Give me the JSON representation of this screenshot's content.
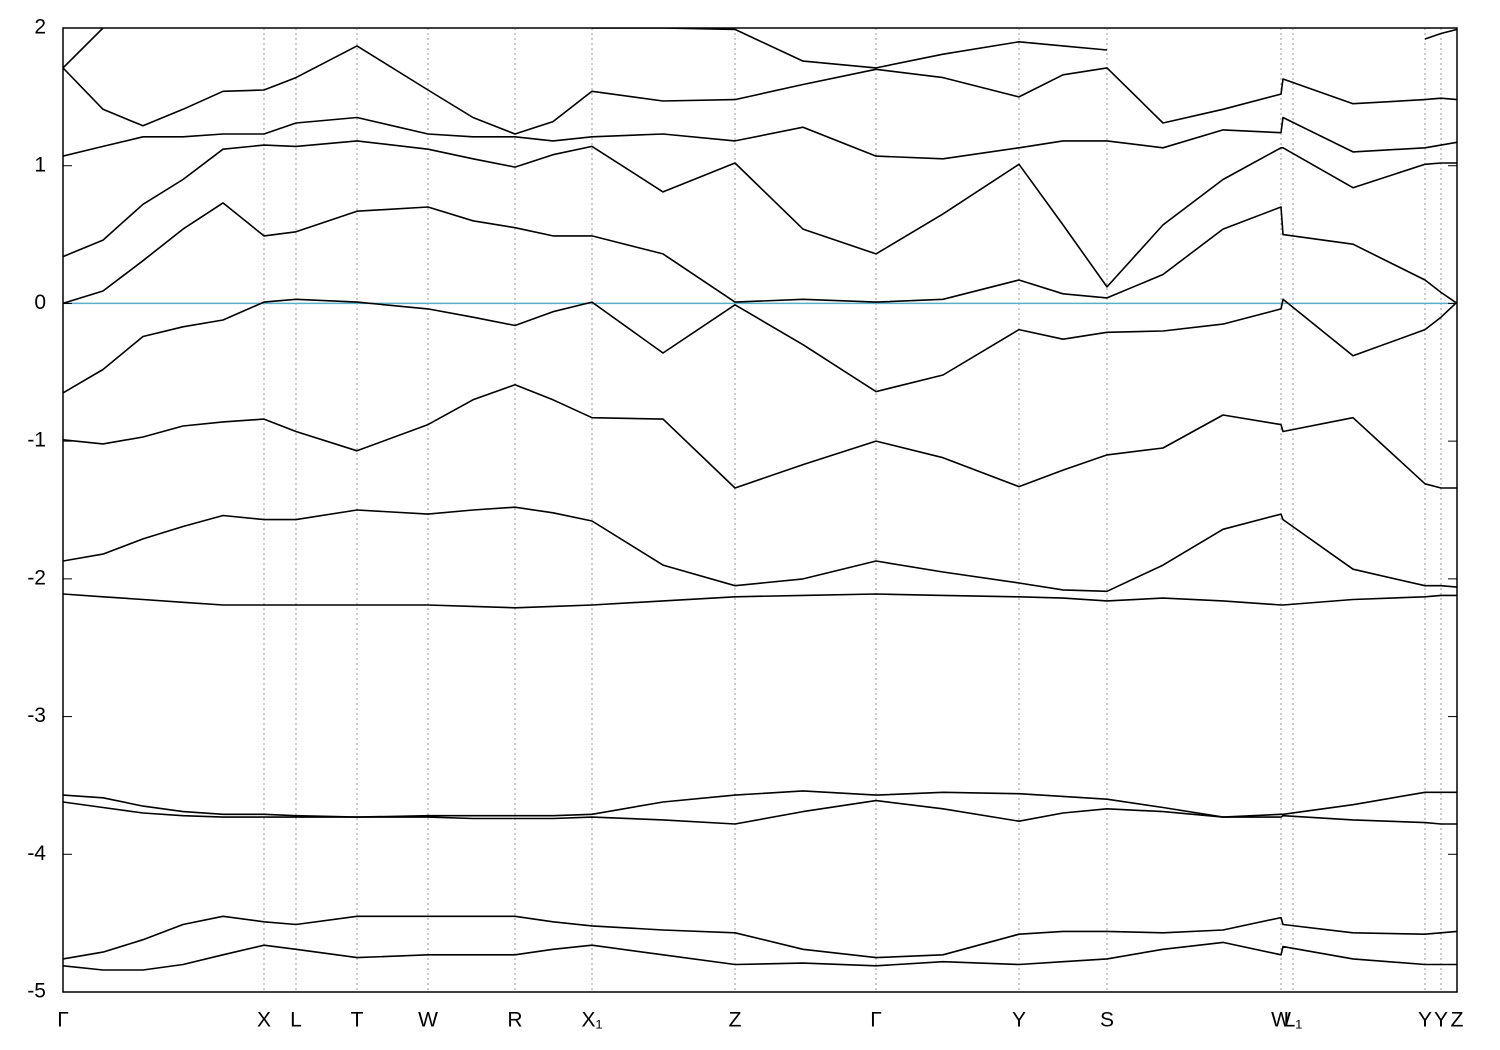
{
  "chart_data": {
    "type": "line",
    "x": [
      0,
      40,
      80,
      120,
      160,
      201,
      233,
      294,
      365,
      410,
      452,
      490,
      529,
      600,
      672,
      740,
      813,
      880,
      956,
      1000,
      1044,
      1100,
      1160,
      1218,
      1220,
      1290,
      1362,
      1378,
      1394
    ],
    "xlim": [
      0,
      1394
    ],
    "xticks": [
      {
        "value": 0,
        "label": "Γ"
      },
      {
        "value": 201,
        "label": "X"
      },
      {
        "value": 233,
        "label": "L"
      },
      {
        "value": 294,
        "label": "T"
      },
      {
        "value": 365,
        "label": "W"
      },
      {
        "value": 452,
        "label": "R"
      },
      {
        "value": 529,
        "label": "X₁"
      },
      {
        "value": 672,
        "label": "Z"
      },
      {
        "value": 813,
        "label": "Γ"
      },
      {
        "value": 956,
        "label": "Y"
      },
      {
        "value": 1044,
        "label": "S"
      },
      {
        "value": 1218,
        "label": "W"
      },
      {
        "value": 1230,
        "label": "L₁"
      },
      {
        "value": 1362,
        "label": "Y"
      },
      {
        "value": 1378,
        "label": "Y"
      },
      {
        "value": 1394,
        "label": "Z"
      }
    ],
    "ylim": [
      -5,
      2
    ],
    "yticks": [
      -5,
      -4,
      -3,
      -2,
      -1,
      0,
      1,
      2
    ],
    "grid": true,
    "color": "#000000",
    "hline": 0,
    "hline_color": "#5aaec8",
    "series": [
      {
        "values": [
          -4.81,
          -4.84,
          -4.84,
          -4.8,
          -4.73,
          -4.66,
          -4.69,
          -4.75,
          -4.73,
          -4.73,
          -4.73,
          -4.69,
          -4.66,
          -4.73,
          -4.8,
          -4.79,
          -4.81,
          -4.78,
          -4.8,
          -4.78,
          -4.76,
          -4.69,
          -4.64,
          -4.73,
          -4.67,
          -4.76,
          -4.8,
          -4.8,
          -4.8
        ]
      },
      {
        "values": [
          -4.76,
          -4.71,
          -4.62,
          -4.51,
          -4.45,
          -4.49,
          -4.51,
          -4.45,
          -4.45,
          -4.45,
          -4.45,
          -4.49,
          -4.52,
          -4.55,
          -4.57,
          -4.69,
          -4.75,
          -4.73,
          -4.58,
          -4.56,
          -4.56,
          -4.57,
          -4.55,
          -4.46,
          -4.51,
          -4.57,
          -4.58,
          -4.57,
          -4.56
        ]
      },
      {
        "values": [
          -3.62,
          -3.66,
          -3.7,
          -3.72,
          -3.73,
          -3.73,
          -3.73,
          -3.73,
          -3.73,
          -3.74,
          -3.74,
          -3.74,
          -3.73,
          -3.75,
          -3.78,
          -3.69,
          -3.61,
          -3.67,
          -3.76,
          -3.7,
          -3.67,
          -3.69,
          -3.73,
          -3.73,
          -3.72,
          -3.75,
          -3.77,
          -3.78,
          -3.78
        ]
      },
      {
        "values": [
          -3.57,
          -3.59,
          -3.65,
          -3.69,
          -3.71,
          -3.71,
          -3.72,
          -3.73,
          -3.72,
          -3.72,
          -3.72,
          -3.72,
          -3.71,
          -3.62,
          -3.57,
          -3.54,
          -3.57,
          -3.55,
          -3.56,
          -3.58,
          -3.6,
          -3.66,
          -3.73,
          -3.71,
          -3.71,
          -3.64,
          -3.55,
          -3.55,
          -3.55
        ]
      },
      {
        "values": [
          -2.11,
          -2.13,
          -2.15,
          -2.17,
          -2.19,
          -2.19,
          -2.19,
          -2.19,
          -2.19,
          -2.2,
          -2.21,
          -2.2,
          -2.19,
          -2.16,
          -2.13,
          -2.12,
          -2.11,
          -2.12,
          -2.13,
          -2.14,
          -2.16,
          -2.14,
          -2.16,
          -2.19,
          -2.19,
          -2.15,
          -2.13,
          -2.12,
          -2.12
        ]
      },
      {
        "values": [
          -1.87,
          -1.82,
          -1.71,
          -1.62,
          -1.54,
          -1.57,
          -1.57,
          -1.5,
          -1.53,
          -1.5,
          -1.48,
          -1.52,
          -1.58,
          -1.9,
          -2.05,
          -2.0,
          -1.87,
          -1.95,
          -2.03,
          -2.08,
          -2.09,
          -1.9,
          -1.64,
          -1.53,
          -1.57,
          -1.93,
          -2.05,
          -2.05,
          -2.06
        ]
      },
      {
        "values": [
          -0.99,
          -1.02,
          -0.97,
          -0.89,
          -0.86,
          -0.84,
          -0.93,
          -1.07,
          -0.88,
          -0.7,
          -0.59,
          -0.7,
          -0.83,
          -0.84,
          -1.34,
          -1.17,
          -1.0,
          -1.12,
          -1.33,
          -1.21,
          -1.1,
          -1.05,
          -0.81,
          -0.88,
          -0.93,
          -0.83,
          -1.31,
          -1.34,
          -1.34
        ]
      },
      {
        "values": [
          -0.65,
          -0.48,
          -0.24,
          -0.17,
          -0.12,
          0.01,
          0.03,
          0.01,
          -0.04,
          -0.1,
          -0.16,
          -0.06,
          0.01,
          -0.36,
          -0.01,
          -0.3,
          -0.64,
          -0.52,
          -0.19,
          -0.26,
          -0.21,
          -0.2,
          -0.15,
          -0.04,
          0.03,
          -0.38,
          -0.19,
          -0.1,
          0.01
        ]
      },
      {
        "values": [
          0.0,
          0.09,
          0.31,
          0.54,
          0.73,
          0.49,
          0.52,
          0.67,
          0.7,
          0.6,
          0.55,
          0.49,
          0.49,
          0.36,
          0.01,
          0.03,
          0.01,
          0.03,
          0.17,
          0.07,
          0.04,
          0.21,
          0.54,
          0.7,
          0.5,
          0.43,
          0.17,
          0.08,
          0.0
        ]
      },
      {
        "values": [
          0.34,
          0.46,
          0.72,
          0.9,
          1.12,
          1.15,
          1.14,
          1.18,
          1.12,
          1.05,
          0.99,
          1.08,
          1.14,
          0.81,
          1.02,
          0.54,
          0.36,
          0.65,
          1.01,
          0.57,
          0.12,
          0.57,
          0.9,
          1.13,
          1.13,
          0.84,
          1.01,
          1.02,
          1.02
        ]
      },
      {
        "values": [
          1.07,
          1.14,
          1.21,
          1.21,
          1.23,
          1.23,
          1.31,
          1.35,
          1.23,
          1.21,
          1.21,
          1.18,
          1.21,
          1.23,
          1.18,
          1.28,
          1.07,
          1.05,
          1.13,
          1.18,
          1.18,
          1.13,
          1.26,
          1.24,
          1.35,
          1.1,
          1.13,
          1.15,
          1.17
        ]
      },
      {
        "values": [
          1.71,
          1.41,
          1.29,
          1.41,
          1.54,
          1.55,
          1.64,
          1.87,
          1.55,
          1.35,
          1.23,
          1.32,
          1.54,
          1.47,
          1.48,
          1.59,
          1.7,
          1.64,
          1.5,
          1.66,
          1.71,
          1.31,
          1.41,
          1.52,
          1.63,
          1.45,
          1.48,
          1.49,
          1.48
        ]
      },
      {
        "values": [
          1.71,
          2.0,
          null,
          null,
          null,
          null,
          null,
          null,
          null,
          null,
          null,
          null,
          2.0,
          2.0,
          1.99,
          1.76,
          1.71,
          1.81,
          1.9,
          1.87,
          1.84,
          null,
          null,
          null,
          null,
          null,
          1.92,
          1.96,
          1.99
        ]
      }
    ]
  }
}
